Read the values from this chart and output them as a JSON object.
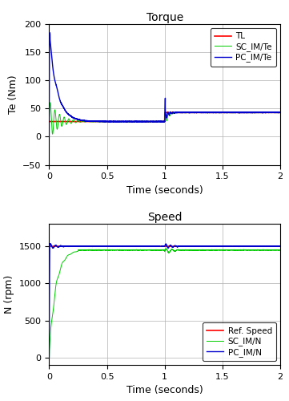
{
  "title_torque": "Torque",
  "title_speed": "Speed",
  "xlabel": "Time (seconds)",
  "ylabel_torque": "Te (Nm)",
  "ylabel_speed": "N (rpm)",
  "xlim": [
    0,
    2
  ],
  "torque_ylim": [
    -50,
    200
  ],
  "speed_ylim": [
    -100,
    1800
  ],
  "torque_yticks": [
    -50,
    0,
    50,
    100,
    150,
    200
  ],
  "speed_yticks": [
    0,
    500,
    1000,
    1500
  ],
  "xticks": [
    0,
    0.5,
    1.0,
    1.5,
    2.0
  ],
  "TL_color": "#ff0000",
  "SC_IM_Te_color": "#00cc00",
  "PC_IM_Te_color": "#0000cc",
  "Ref_Speed_color": "#ff0000",
  "SC_IM_N_color": "#00cc00",
  "PC_IM_N_color": "#0000cc",
  "torque_step1": 27,
  "torque_step2": 43,
  "speed_ref": 1500,
  "bg_color": "#ffffff",
  "grid_color": "#b0b0b0",
  "legend_torque": [
    "TL",
    "SC_IM/Te",
    "PC_IM/Te"
  ],
  "legend_speed": [
    "Ref. Speed",
    "SC_IM/N",
    "PC_IM/N"
  ]
}
